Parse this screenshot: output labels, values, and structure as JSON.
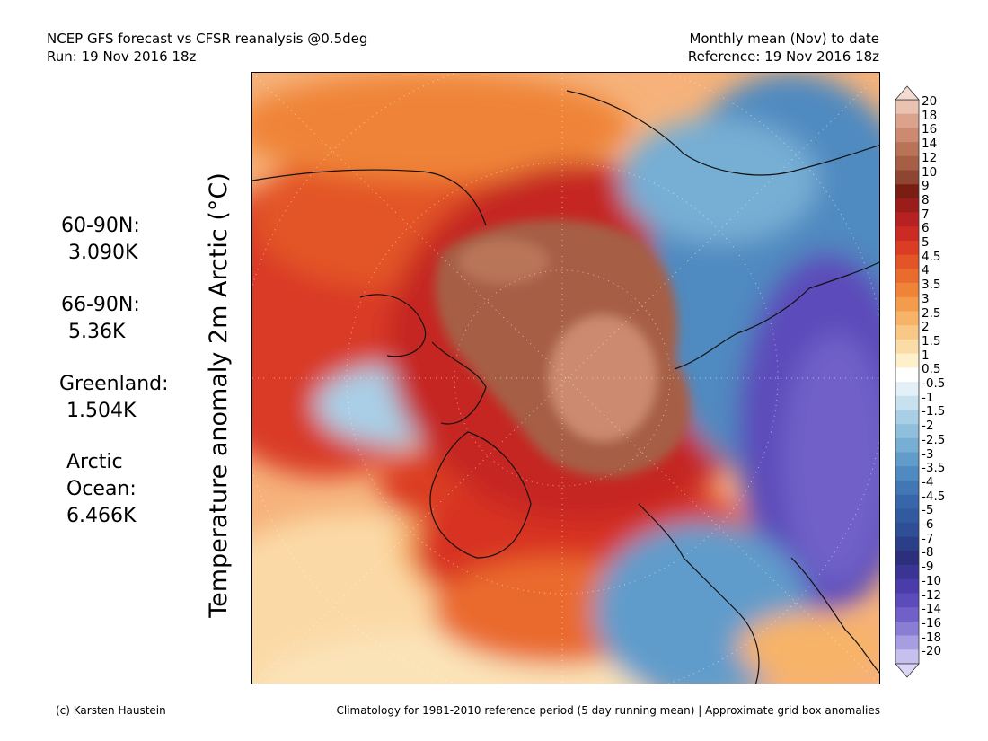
{
  "header": {
    "left_line1": "NCEP GFS forecast vs CFSR reanalysis @0.5deg",
    "left_line2": "Run: 19 Nov 2016 18z",
    "right_line1": "Monthly mean (Nov) to date",
    "right_line2": "Reference: 19 Nov 2016 18z"
  },
  "y_axis_label": "Temperature anomaly 2m Arctic (°C)",
  "stats": [
    {
      "label": "60-90N:",
      "value": "3.090K"
    },
    {
      "label": "66-90N:",
      "value": "5.36K"
    },
    {
      "label": "Greenland:",
      "value": "1.504K"
    },
    {
      "label": "Arctic",
      "label2": "Ocean:",
      "value": "6.466K"
    }
  ],
  "colorbar": {
    "labels": [
      "20",
      "18",
      "16",
      "14",
      "12",
      "10",
      "9",
      "8",
      "7",
      "6",
      "5",
      "4.5",
      "4",
      "3.5",
      "3",
      "2.5",
      "2",
      "1.5",
      "1",
      "0.5",
      "-0.5",
      "-1",
      "-1.5",
      "-2",
      "-2.5",
      "-3",
      "-3.5",
      "-4",
      "-4.5",
      "-5",
      "-6",
      "-7",
      "-8",
      "-9",
      "-10",
      "-12",
      "-14",
      "-16",
      "-18",
      "-20"
    ],
    "colors": [
      "#e9c2b2",
      "#dba28c",
      "#cc8a70",
      "#b97458",
      "#a65e45",
      "#8e4632",
      "#7a1e14",
      "#9a1d19",
      "#b82121",
      "#cc2b23",
      "#db3d24",
      "#e35427",
      "#ea6b2e",
      "#ef8439",
      "#f49c4d",
      "#f7b367",
      "#f9c886",
      "#fbdca6",
      "#fdf0cb",
      "#ffffff",
      "#e4f0f7",
      "#c8e1ef",
      "#a9cfe6",
      "#8ebfdd",
      "#76aed4",
      "#619ccb",
      "#4f8ac0",
      "#4177b5",
      "#3866aa",
      "#325a9f",
      "#2e4f95",
      "#2b3f88",
      "#2b2f7c",
      "#3b3494",
      "#4a3daa",
      "#5c4bba",
      "#7060c8",
      "#8a7ed4",
      "#a69ee0",
      "#c6c0ee"
    ]
  },
  "footer": {
    "left": "(c) Karsten Haustein",
    "right": "Climatology for 1981-2010 reference period (5 day running mean) | Approximate grid box anomalies"
  }
}
